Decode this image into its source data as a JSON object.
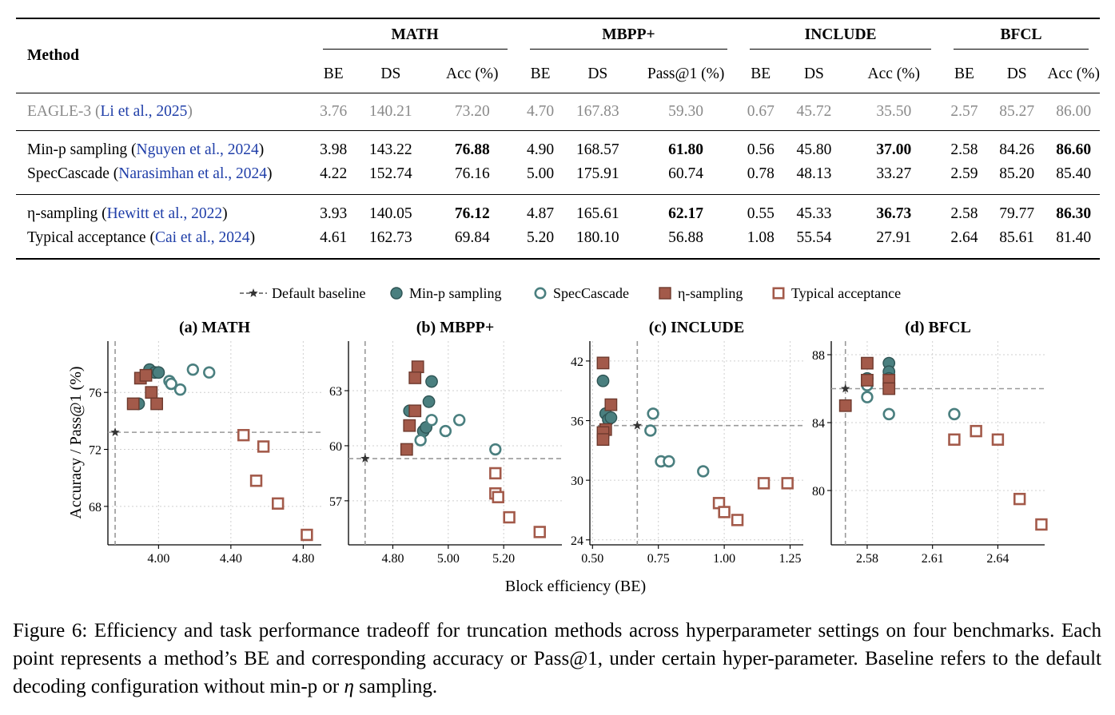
{
  "table": {
    "method_header": "Method",
    "groups": [
      "MATH",
      "MBPP+",
      "INCLUDE",
      "BFCL"
    ],
    "subheaders": [
      "BE",
      "DS",
      "Acc (%)",
      "BE",
      "DS",
      "Pass@1 (%)",
      "BE",
      "DS",
      "Acc (%)",
      "BE",
      "DS",
      "Acc (%)"
    ],
    "rows": [
      {
        "name_pre": "EAGLE-3 (",
        "name_cite": "Li et al., 2025",
        "name_post": ")",
        "gray": true,
        "values": [
          "3.76",
          "140.21",
          "73.20",
          "4.70",
          "167.83",
          "59.30",
          "0.67",
          "45.72",
          "35.50",
          "2.57",
          "85.27",
          "86.00"
        ],
        "bold": []
      },
      {
        "name_pre": "Min-p sampling (",
        "name_cite": "Nguyen et al., 2024",
        "name_post": ")",
        "gray": false,
        "values": [
          "3.98",
          "143.22",
          "76.88",
          "4.90",
          "168.57",
          "61.80",
          "0.56",
          "45.80",
          "37.00",
          "2.58",
          "84.26",
          "86.60"
        ],
        "bold": [
          2,
          5,
          8,
          11
        ]
      },
      {
        "name_pre": "SpecCascade (",
        "name_cite": "Narasimhan et al., 2024",
        "name_post": ")",
        "gray": false,
        "values": [
          "4.22",
          "152.74",
          "76.16",
          "5.00",
          "175.91",
          "60.74",
          "0.78",
          "48.13",
          "33.27",
          "2.59",
          "85.20",
          "85.40"
        ],
        "bold": []
      },
      {
        "name_pre": "η-sampling (",
        "name_cite": "Hewitt et al., 2022",
        "name_post": ")",
        "gray": false,
        "values": [
          "3.93",
          "140.05",
          "76.12",
          "4.87",
          "165.61",
          "62.17",
          "0.55",
          "45.33",
          "36.73",
          "2.58",
          "79.77",
          "86.30"
        ],
        "bold": [
          2,
          5,
          8,
          11
        ]
      },
      {
        "name_pre": "Typical acceptance (",
        "name_cite": "Cai et al., 2024",
        "name_post": ")",
        "gray": false,
        "values": [
          "4.61",
          "162.73",
          "69.84",
          "5.20",
          "180.10",
          "56.88",
          "1.08",
          "55.54",
          "27.91",
          "2.64",
          "85.61",
          "81.40"
        ],
        "bold": []
      }
    ]
  },
  "legend": {
    "items": [
      {
        "label": "Default baseline",
        "marker": "star-dashed",
        "color": "#555555"
      },
      {
        "label": "Min-p sampling",
        "marker": "filled-circle",
        "color": "#4a7f7f"
      },
      {
        "label": "SpecCascade",
        "marker": "open-circle",
        "color": "#4a7f7f"
      },
      {
        "label": "η-sampling",
        "marker": "filled-square",
        "color": "#a35a4a"
      },
      {
        "label": "Typical acceptance",
        "marker": "open-square",
        "color": "#a35a4a"
      }
    ]
  },
  "colors": {
    "teal": "#4a7f7f",
    "rust": "#a35a4a",
    "baseline": "#555555",
    "grid": "#cfcfcf"
  },
  "shared_xlabel": "Block efficiency (BE)",
  "shared_ylabel": "Accuracy / Pass@1 (%)",
  "chart_data": [
    {
      "type": "scatter",
      "title": "(a) MATH",
      "xlim": [
        3.72,
        4.9
      ],
      "ylim": [
        65.3,
        79.6
      ],
      "xticks": [
        4.0,
        4.4,
        4.8
      ],
      "xticklabels": [
        "4.00",
        "4.40",
        "4.80"
      ],
      "yticks": [
        68,
        72,
        76
      ],
      "yticklabels": [
        "68",
        "72",
        "76"
      ],
      "baseline": {
        "x": 3.76,
        "y": 73.2
      },
      "series": [
        {
          "name": "Min-p sampling",
          "points": [
            [
              3.95,
              77.6
            ],
            [
              3.98,
              77.4
            ],
            [
              4.0,
              77.4
            ],
            [
              3.89,
              75.2
            ]
          ]
        },
        {
          "name": "SpecCascade",
          "points": [
            [
              4.06,
              76.8
            ],
            [
              4.07,
              76.6
            ],
            [
              4.12,
              76.2
            ],
            [
              4.19,
              77.6
            ],
            [
              4.28,
              77.4
            ]
          ]
        },
        {
          "name": "η-sampling",
          "points": [
            [
              3.9,
              77.0
            ],
            [
              3.93,
              77.2
            ],
            [
              3.96,
              76.0
            ],
            [
              3.99,
              75.2
            ],
            [
              3.86,
              75.2
            ]
          ]
        },
        {
          "name": "Typical acceptance",
          "points": [
            [
              4.47,
              73.0
            ],
            [
              4.58,
              72.2
            ],
            [
              4.54,
              69.8
            ],
            [
              4.66,
              68.2
            ],
            [
              4.82,
              66.0
            ]
          ]
        }
      ]
    },
    {
      "type": "scatter",
      "title": "(b) MBPP+",
      "xlim": [
        4.64,
        5.41
      ],
      "ylim": [
        54.6,
        65.7
      ],
      "xticks": [
        4.8,
        5.0,
        5.2
      ],
      "xticklabels": [
        "4.80",
        "5.00",
        "5.20"
      ],
      "yticks": [
        57,
        60,
        63
      ],
      "yticklabels": [
        "57",
        "60",
        "63"
      ],
      "baseline": {
        "x": 4.7,
        "y": 59.3
      },
      "series": [
        {
          "name": "Min-p sampling",
          "points": [
            [
              4.86,
              61.9
            ],
            [
              4.93,
              62.4
            ],
            [
              4.94,
              63.5
            ],
            [
              4.91,
              60.8
            ],
            [
              4.92,
              61.0
            ]
          ]
        },
        {
          "name": "SpecCascade",
          "points": [
            [
              4.9,
              60.3
            ],
            [
              4.94,
              61.4
            ],
            [
              4.99,
              60.8
            ],
            [
              5.04,
              61.4
            ],
            [
              5.17,
              59.8
            ]
          ]
        },
        {
          "name": "η-sampling",
          "points": [
            [
              4.89,
              64.3
            ],
            [
              4.88,
              63.7
            ],
            [
              4.88,
              61.9
            ],
            [
              4.86,
              61.1
            ],
            [
              4.85,
              59.8
            ]
          ]
        },
        {
          "name": "Typical acceptance",
          "points": [
            [
              5.17,
              58.5
            ],
            [
              5.17,
              57.4
            ],
            [
              5.18,
              57.2
            ],
            [
              5.22,
              56.1
            ],
            [
              5.33,
              55.3
            ]
          ]
        }
      ]
    },
    {
      "type": "scatter",
      "title": "(c) INCLUDE",
      "xlim": [
        0.49,
        1.3
      ],
      "ylim": [
        23.5,
        44.0
      ],
      "xticks": [
        0.5,
        0.75,
        1.0,
        1.25
      ],
      "xticklabels": [
        "0.50",
        "0.75",
        "1.00",
        "1.25"
      ],
      "yticks": [
        24,
        30,
        36,
        42
      ],
      "yticklabels": [
        "24",
        "30",
        "36",
        "42"
      ],
      "baseline": {
        "x": 0.67,
        "y": 35.5
      },
      "series": [
        {
          "name": "Min-p sampling",
          "points": [
            [
              0.54,
              40.0
            ],
            [
              0.55,
              36.7
            ],
            [
              0.56,
              36.1
            ],
            [
              0.57,
              36.3
            ]
          ]
        },
        {
          "name": "SpecCascade",
          "points": [
            [
              0.73,
              36.7
            ],
            [
              0.72,
              35.0
            ],
            [
              0.76,
              31.9
            ],
            [
              0.79,
              31.9
            ],
            [
              0.92,
              30.9
            ]
          ]
        },
        {
          "name": "η-sampling",
          "points": [
            [
              0.54,
              41.8
            ],
            [
              0.57,
              37.6
            ],
            [
              0.55,
              35.1
            ],
            [
              0.54,
              34.8
            ],
            [
              0.54,
              34.1
            ]
          ]
        },
        {
          "name": "Typical acceptance",
          "points": [
            [
              0.98,
              27.7
            ],
            [
              1.0,
              26.8
            ],
            [
              1.05,
              26.0
            ],
            [
              1.15,
              29.7
            ],
            [
              1.24,
              29.7
            ]
          ]
        }
      ]
    },
    {
      "type": "scatter",
      "title": "(d) BFCL",
      "xlim": [
        2.5635,
        2.6615
      ],
      "ylim": [
        76.8,
        88.8
      ],
      "xticks": [
        2.58,
        2.61,
        2.64
      ],
      "xticklabels": [
        "2.58",
        "2.61",
        "2.64"
      ],
      "yticks": [
        80,
        84,
        88
      ],
      "yticklabels": [
        "80",
        "84",
        "88"
      ],
      "baseline": {
        "x": 2.57,
        "y": 86.0
      },
      "series": [
        {
          "name": "Min-p sampling",
          "points": [
            [
              2.59,
              87.5
            ],
            [
              2.59,
              87.0
            ],
            [
              2.59,
              86.6
            ],
            [
              2.58,
              86.6
            ]
          ]
        },
        {
          "name": "SpecCascade",
          "points": [
            [
              2.58,
              86.2
            ],
            [
              2.58,
              85.5
            ],
            [
              2.59,
              84.5
            ],
            [
              2.62,
              84.5
            ]
          ]
        },
        {
          "name": "η-sampling",
          "points": [
            [
              2.58,
              87.5
            ],
            [
              2.58,
              86.5
            ],
            [
              2.59,
              86.5
            ],
            [
              2.59,
              86.0
            ],
            [
              2.57,
              85.0
            ]
          ]
        },
        {
          "name": "Typical acceptance",
          "points": [
            [
              2.62,
              83.0
            ],
            [
              2.63,
              83.5
            ],
            [
              2.64,
              83.0
            ],
            [
              2.65,
              79.5
            ],
            [
              2.66,
              78.0
            ]
          ]
        }
      ]
    }
  ],
  "caption": {
    "part1": "Figure 6:  Efficiency and task performance tradeoff for truncation methods across hyperparameter settings on four benchmarks.  Each point represents a method’s BE and corresponding accuracy or Pass@1, under certain hyper-parameter. Baseline refers to the default decoding configuration without min-p or ",
    "eta": "η",
    "part2": " sampling."
  }
}
